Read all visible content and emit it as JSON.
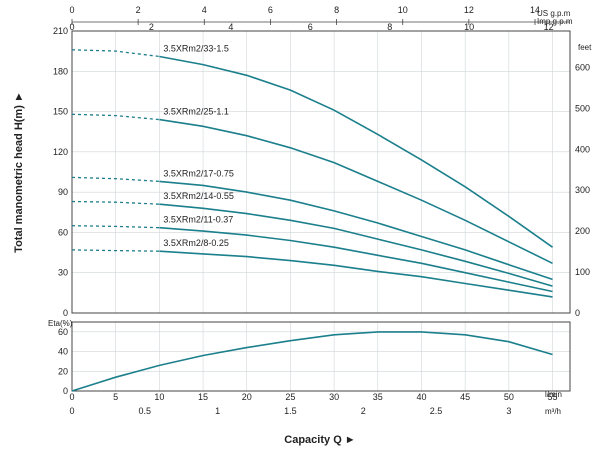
{
  "colors": {
    "curve": "#1b7f8c",
    "frame": "#444444",
    "background": "#ffffff"
  },
  "units": {
    "us_gpm": "US g.p.m",
    "imp_gpm": "Imp g.p.m",
    "feet": "feet",
    "l_per_min": "l/min",
    "m3_per_h": "m³/h",
    "eta": "Eta(%)"
  },
  "titles": {
    "head": "Total manometric head H(m) ►",
    "capacity": "Capacity Q ►"
  },
  "ticks": {
    "us_gpm": [
      "0",
      "2",
      "4",
      "6",
      "8",
      "10",
      "12",
      "14"
    ],
    "imp_gpm": [
      "0",
      "2",
      "4",
      "6",
      "8",
      "10",
      "12"
    ],
    "head_m": [
      "0",
      "30",
      "60",
      "90",
      "120",
      "150",
      "180",
      "210"
    ],
    "head_feet": [
      "0",
      "100",
      "200",
      "300",
      "400",
      "500",
      "600"
    ],
    "eta": [
      "0",
      "20",
      "40",
      "60"
    ],
    "l_per_min": [
      "0",
      "5",
      "10",
      "15",
      "20",
      "25",
      "30",
      "35",
      "40",
      "45",
      "50",
      "55"
    ],
    "m3_per_h": [
      "0",
      "0.5",
      "1",
      "1.5",
      "2",
      "2.5",
      "3"
    ]
  },
  "chart_data": [
    {
      "type": "line",
      "title": "",
      "xlabel": "Capacity Q",
      "ylabel": "Total manometric head H(m)",
      "xlim": [
        0,
        57
      ],
      "ylim": [
        0,
        210
      ],
      "x_unit": "l/min",
      "y_unit": "m",
      "dashed_segment_x": [
        0,
        10
      ],
      "grid": true,
      "series": [
        {
          "name": "3.5XRm2/33-1.5",
          "x": [
            0,
            5,
            10,
            15,
            20,
            25,
            30,
            35,
            40,
            45,
            50,
            55
          ],
          "values": [
            196,
            195,
            191,
            185,
            177,
            166,
            151,
            133,
            114,
            94,
            72,
            49
          ]
        },
        {
          "name": "3.5XRm2/25-1.1",
          "x": [
            0,
            5,
            10,
            15,
            20,
            25,
            30,
            35,
            40,
            45,
            50,
            55
          ],
          "values": [
            148,
            147,
            144,
            139,
            132,
            123,
            112,
            98,
            84,
            69,
            53,
            37
          ]
        },
        {
          "name": "3.5XRm2/17-0.75",
          "x": [
            0,
            5,
            10,
            15,
            20,
            25,
            30,
            35,
            40,
            45,
            50,
            55
          ],
          "values": [
            101,
            100,
            98,
            95,
            90,
            84,
            76,
            67,
            57,
            47,
            36,
            25
          ]
        },
        {
          "name": "3.5XRm2/14-0.55",
          "x": [
            0,
            5,
            10,
            15,
            20,
            25,
            30,
            35,
            40,
            45,
            50,
            55
          ],
          "values": [
            83,
            82.5,
            81,
            78,
            74,
            69,
            63,
            55,
            47,
            38.5,
            29.5,
            20
          ]
        },
        {
          "name": "3.5XRm2/11-0.37",
          "x": [
            0,
            5,
            10,
            15,
            20,
            25,
            30,
            35,
            40,
            45,
            50,
            55
          ],
          "values": [
            65,
            64.5,
            63.5,
            61,
            58,
            54,
            49,
            43,
            37,
            30,
            23,
            16
          ]
        },
        {
          "name": "3.5XRm2/8-0.25",
          "x": [
            0,
            5,
            10,
            15,
            20,
            25,
            30,
            35,
            40,
            45,
            50,
            55
          ],
          "values": [
            47,
            46.5,
            46,
            44,
            42,
            39,
            35.5,
            31,
            27,
            22,
            17,
            12
          ]
        }
      ]
    },
    {
      "type": "line",
      "title": "",
      "xlabel": "Capacity Q",
      "ylabel": "Eta(%)",
      "xlim": [
        0,
        57
      ],
      "ylim": [
        0,
        70
      ],
      "x_unit": "l/min",
      "grid": true,
      "series": [
        {
          "x": [
            0,
            5,
            10,
            15,
            20,
            25,
            30,
            35,
            40,
            45,
            50,
            55
          ],
          "values": [
            0,
            14,
            26,
            36,
            44,
            51,
            57,
            60,
            60,
            57,
            50,
            37
          ]
        }
      ]
    }
  ]
}
